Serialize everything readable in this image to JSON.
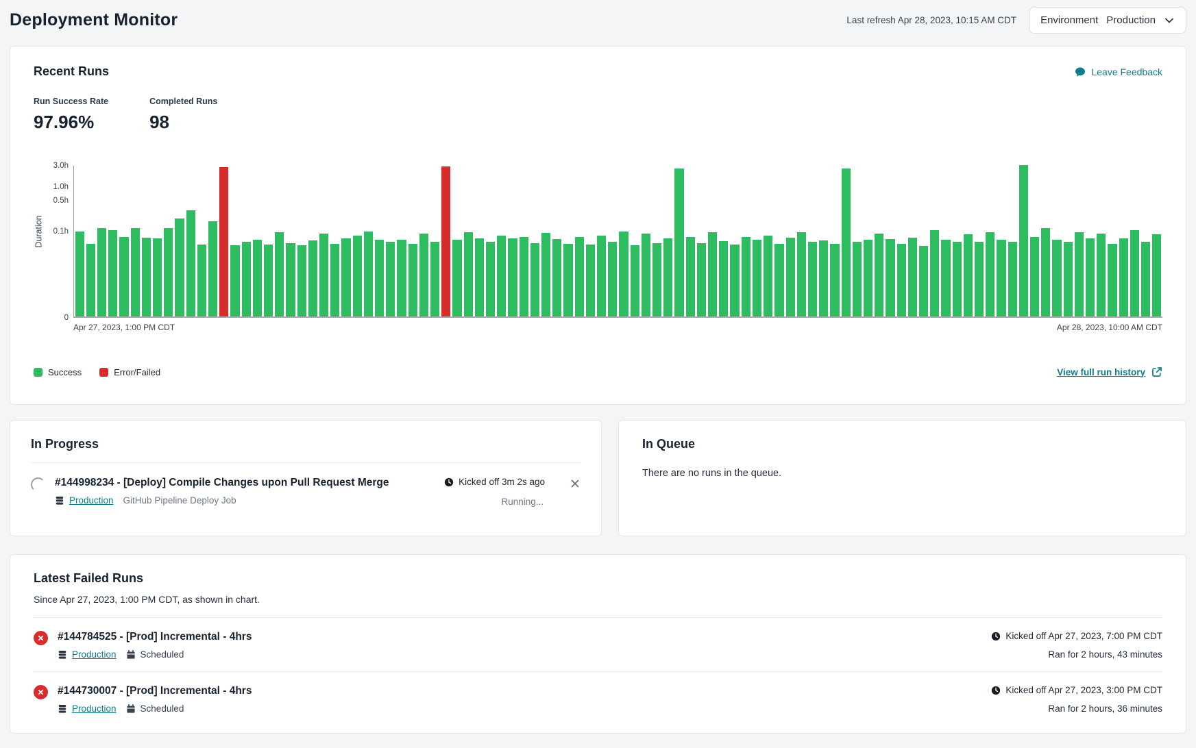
{
  "header": {
    "title": "Deployment Monitor",
    "last_refresh": "Last refresh Apr 28, 2023, 10:15 AM CDT",
    "environment_label": "Environment",
    "environment_value": "Production"
  },
  "recent_runs": {
    "title": "Recent Runs",
    "feedback_label": "Leave Feedback",
    "stats": [
      {
        "label": "Run Success Rate",
        "value": "97.96%"
      },
      {
        "label": "Completed Runs",
        "value": "98"
      }
    ],
    "legend": [
      {
        "label": "Success",
        "color": "#2dbd60"
      },
      {
        "label": "Error/Failed",
        "color": "#d62c2c"
      }
    ],
    "view_history_label": "View full run history"
  },
  "chart_data": {
    "type": "bar",
    "title": "Recent run durations by run, colored by status",
    "ylabel": "Duration",
    "unit": "hours",
    "y_scale": "log",
    "y_max": 3.0,
    "y_ticks": [
      {
        "label": "3.0h",
        "value": 3.0
      },
      {
        "label": "1.0h",
        "value": 1.0
      },
      {
        "label": "0.5h",
        "value": 0.5
      },
      {
        "label": "0.1h",
        "value": 0.1
      },
      {
        "label": "0",
        "value": 0
      }
    ],
    "x_start_label": "Apr 27, 2023, 1:00 PM CDT",
    "x_end_label": "Apr 28, 2023, 10:00 AM CDT",
    "success_color": "#2dbd60",
    "failed_color": "#d62c2c",
    "failed_indices": [
      13,
      33
    ],
    "values": [
      0.095,
      0.05,
      0.11,
      0.1,
      0.07,
      0.11,
      0.068,
      0.065,
      0.11,
      0.18,
      0.28,
      0.047,
      0.16,
      2.6,
      0.046,
      0.055,
      0.06,
      0.048,
      0.09,
      0.052,
      0.046,
      0.058,
      0.085,
      0.05,
      0.065,
      0.075,
      0.095,
      0.06,
      0.055,
      0.062,
      0.05,
      0.085,
      0.055,
      2.717,
      0.06,
      0.09,
      0.065,
      0.055,
      0.075,
      0.065,
      0.07,
      0.052,
      0.088,
      0.063,
      0.05,
      0.07,
      0.048,
      0.075,
      0.055,
      0.095,
      0.046,
      0.085,
      0.052,
      0.065,
      2.4,
      0.07,
      0.052,
      0.09,
      0.056,
      0.048,
      0.07,
      0.062,
      0.075,
      0.05,
      0.068,
      0.09,
      0.055,
      0.058,
      0.05,
      2.4,
      0.055,
      0.06,
      0.085,
      0.063,
      0.05,
      0.068,
      0.045,
      0.1,
      0.06,
      0.055,
      0.08,
      0.055,
      0.09,
      0.06,
      0.055,
      2.9,
      0.07,
      0.11,
      0.062,
      0.055,
      0.09,
      0.065,
      0.085,
      0.05,
      0.065,
      0.1,
      0.055,
      0.08
    ]
  },
  "in_progress": {
    "title": "In Progress",
    "run": {
      "title": "#144998234 - [Deploy] Compile Changes upon Pull Request Merge",
      "environment": "Production",
      "job": "GitHub Pipeline Deploy Job",
      "kicked_off": "Kicked off 3m 2s ago",
      "status": "Running..."
    }
  },
  "in_queue": {
    "title": "In Queue",
    "empty_message": "There are no runs in the queue."
  },
  "failed_runs": {
    "title": "Latest Failed Runs",
    "subtitle": "Since Apr 27, 2023, 1:00 PM CDT, as shown in chart.",
    "items": [
      {
        "title": "#144784525 - [Prod] Incremental - 4hrs",
        "environment": "Production",
        "trigger": "Scheduled",
        "kicked_off": "Kicked off Apr 27, 2023, 7:00 PM CDT",
        "duration": "Ran for 2 hours, 43 minutes"
      },
      {
        "title": "#144730007 - [Prod] Incremental - 4hrs",
        "environment": "Production",
        "trigger": "Scheduled",
        "kicked_off": "Kicked off Apr 27, 2023, 3:00 PM CDT",
        "duration": "Ran for 2 hours, 36 minutes"
      }
    ]
  }
}
